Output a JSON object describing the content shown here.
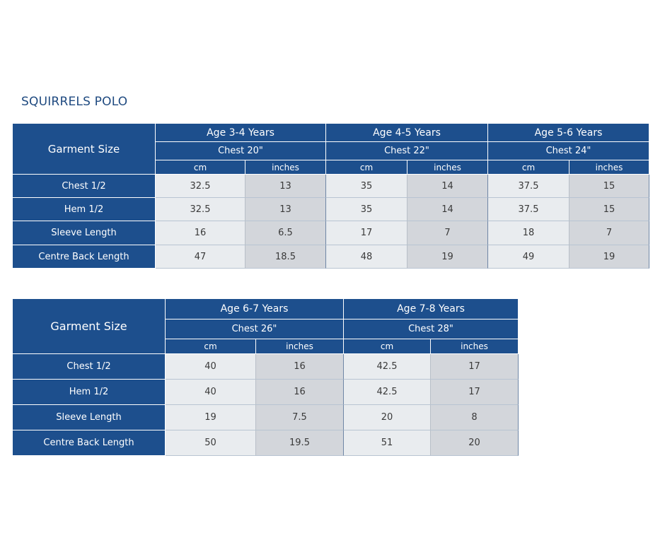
{
  "title": "SQUIRRELS POLO",
  "tables": [
    {
      "corner": "Garment Size",
      "groups": [
        {
          "age": "Age 3-4 Years",
          "chest": "Chest 20\"",
          "units": [
            "cm",
            "inches"
          ]
        },
        {
          "age": "Age 4-5 Years",
          "chest": "Chest 22\"",
          "units": [
            "cm",
            "inches"
          ]
        },
        {
          "age": "Age 5-6 Years",
          "chest": "Chest 24\"",
          "units": [
            "cm",
            "inches"
          ]
        }
      ],
      "rows": [
        {
          "label": "Chest 1/2",
          "cells": [
            32.5,
            13,
            35,
            14,
            37.5,
            15
          ]
        },
        {
          "label": "Hem 1/2",
          "cells": [
            32.5,
            13,
            35,
            14,
            37.5,
            15
          ]
        },
        {
          "label": "Sleeve Length",
          "cells": [
            16,
            6.5,
            17,
            7,
            18,
            7
          ]
        },
        {
          "label": "Centre Back Length",
          "cells": [
            47,
            18.5,
            48,
            19,
            49,
            19
          ]
        }
      ]
    },
    {
      "corner": "Garment Size",
      "groups": [
        {
          "age": "Age 6-7 Years",
          "chest": "Chest 26\"",
          "units": [
            "cm",
            "inches"
          ]
        },
        {
          "age": "Age 7-8 Years",
          "chest": "Chest 28\"",
          "units": [
            "cm",
            "inches"
          ]
        }
      ],
      "rows": [
        {
          "label": "Chest 1/2",
          "cells": [
            40,
            16,
            42.5,
            17
          ]
        },
        {
          "label": "Hem 1/2",
          "cells": [
            40,
            16,
            42.5,
            17
          ]
        },
        {
          "label": "Sleeve Length",
          "cells": [
            19,
            7.5,
            20,
            8
          ]
        },
        {
          "label": "Centre Back Length",
          "cells": [
            50,
            19.5,
            51,
            20
          ]
        }
      ]
    }
  ]
}
